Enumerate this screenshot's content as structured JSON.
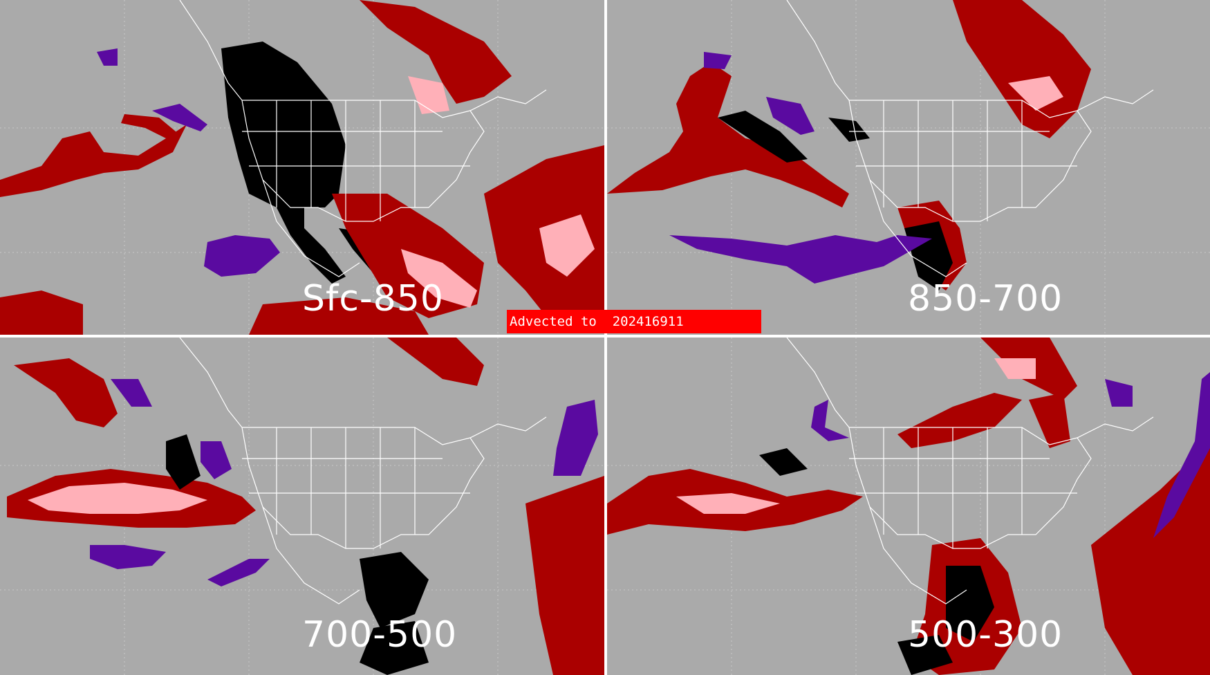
{
  "banner": {
    "text": "Advected to  202416911",
    "color": "#ff0000"
  },
  "colors": {
    "background": "#aaaaaa",
    "boundaries": "#ffffff",
    "dark_red": "#aa0000",
    "pink": "#ffb0b8",
    "purple": "#5a0aa0",
    "black": "#000000"
  },
  "panels": [
    {
      "id": "tl",
      "label": "Sfc-850"
    },
    {
      "id": "tr",
      "label": "850-700"
    },
    {
      "id": "bl",
      "label": "700-500"
    },
    {
      "id": "br",
      "label": "500-300"
    }
  ]
}
